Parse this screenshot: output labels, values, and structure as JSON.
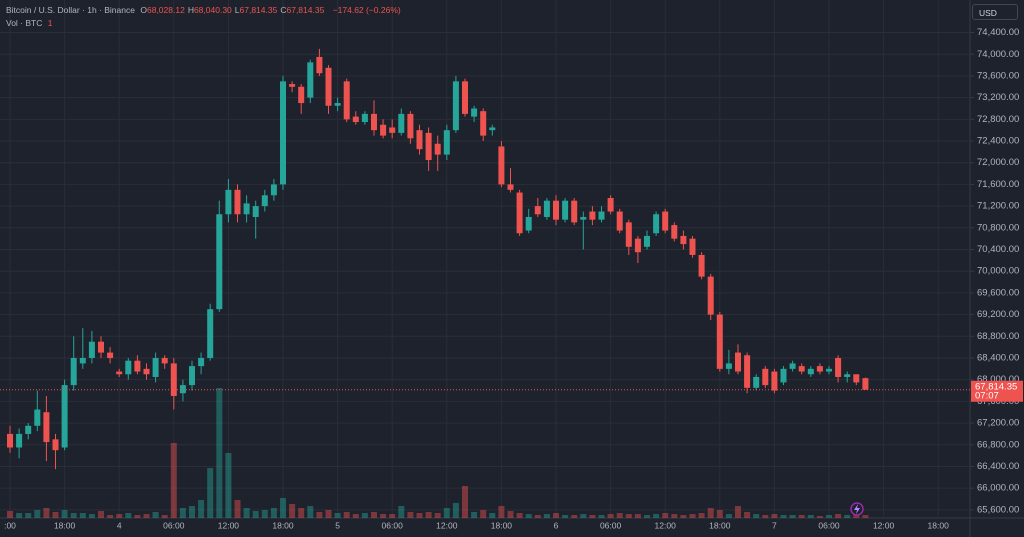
{
  "chart_data": {
    "type": "candlestick",
    "symbol": "Bitcoin / U.S. Dollar · 1h · Binance",
    "ohlc_legend": [
      [
        "O",
        "68,028.12"
      ],
      [
        "H",
        "68,040.30"
      ],
      [
        "L",
        "67,814.35"
      ],
      [
        "C",
        "67,814.35"
      ]
    ],
    "change": "−174.62 (−0.26%)",
    "volume_label": "Vol · BTC",
    "volume_value": "1",
    "currency": "USD",
    "up_color": "#26a69a",
    "down_color": "#ef5350",
    "grid": true,
    "ylim": [
      65450,
      75000
    ],
    "yticks": [
      {
        "value": 65600,
        "label": "65,600.00"
      },
      {
        "value": 66000,
        "label": "66,000.00"
      },
      {
        "value": 66400,
        "label": "66,400.00"
      },
      {
        "value": 66800,
        "label": "66,800.00"
      },
      {
        "value": 67200,
        "label": "67,200.00"
      },
      {
        "value": 67600,
        "label": "67,600.00"
      },
      {
        "value": 68000,
        "label": "68,000.00"
      },
      {
        "value": 68400,
        "label": "68,400.00"
      },
      {
        "value": 68800,
        "label": "68,800.00"
      },
      {
        "value": 69200,
        "label": "69,200.00"
      },
      {
        "value": 69600,
        "label": "69,600.00"
      },
      {
        "value": 70000,
        "label": "70,000.00"
      },
      {
        "value": 70400,
        "label": "70,400.00"
      },
      {
        "value": 70800,
        "label": "70,800.00"
      },
      {
        "value": 71200,
        "label": "71,200.00"
      },
      {
        "value": 71600,
        "label": "71,600.00"
      },
      {
        "value": 72000,
        "label": "72,000.00"
      },
      {
        "value": 72400,
        "label": "72,400.00"
      },
      {
        "value": 72800,
        "label": "72,800.00"
      },
      {
        "value": 73200,
        "label": "73,200.00"
      },
      {
        "value": 73600,
        "label": "73,600.00"
      },
      {
        "value": 74000,
        "label": "74,000.00"
      },
      {
        "value": 74400,
        "label": "74,400.00"
      }
    ],
    "last_price": {
      "value": 67814.35,
      "label": "67,814.35"
    },
    "countdown": "07:07",
    "categories": [
      ":00",
      null,
      null,
      null,
      null,
      null,
      "18:00",
      null,
      null,
      null,
      null,
      null,
      "4",
      null,
      null,
      null,
      null,
      null,
      "06:00",
      null,
      null,
      null,
      null,
      null,
      "12:00",
      null,
      null,
      null,
      null,
      null,
      "18:00",
      null,
      null,
      null,
      null,
      null,
      "5",
      null,
      null,
      null,
      null,
      null,
      "06:00",
      null,
      null,
      null,
      null,
      null,
      "12:00",
      null,
      null,
      null,
      null,
      null,
      "18:00",
      null,
      null,
      null,
      null,
      null,
      "6",
      null,
      null,
      null,
      null,
      null,
      "06:00",
      null,
      null,
      null,
      null,
      null,
      "12:00",
      null,
      null,
      null,
      null,
      null,
      "18:00",
      null,
      null,
      null,
      null,
      null,
      "7",
      null,
      null,
      null,
      null,
      null,
      "06:00",
      null,
      null,
      null,
      null,
      null,
      "12:00",
      null,
      null,
      null,
      null,
      null,
      "18:00"
    ],
    "open": [
      67000,
      66750,
      67000,
      67150,
      67400,
      66900,
      66750,
      67900,
      68300,
      68400,
      68700,
      68500,
      68150,
      68100,
      68350,
      68200,
      68050,
      68400,
      68300,
      67750,
      67900,
      68250,
      68400,
      69300,
      71050,
      71500,
      71050,
      71000,
      71200,
      71400,
      71600,
      73450,
      73400,
      73200,
      73950,
      73750,
      73050,
      73500,
      72850,
      72750,
      72900,
      72700,
      72650,
      72550,
      72900,
      72600,
      72550,
      72350,
      72150,
      72600,
      73500,
      72850,
      72950,
      72600,
      72300,
      71600,
      71450,
      70750,
      71200,
      71000,
      71300,
      70950,
      71300,
      70950,
      71100,
      70950,
      71350,
      71100,
      70900,
      70600,
      70450,
      70700,
      71100,
      70850,
      70650,
      70600,
      70300,
      69900,
      69200,
      68200,
      68500,
      68450,
      67850,
      68200,
      68150,
      67950,
      68200,
      68250,
      68100,
      68250,
      68150,
      68400,
      68050,
      68100,
      68028.12,
      null,
      null,
      null,
      null,
      null,
      null,
      null,
      null
    ],
    "high": [
      67150,
      67100,
      67200,
      67800,
      67700,
      67000,
      68000,
      68800,
      68950,
      68900,
      68800,
      68600,
      68200,
      68400,
      68450,
      68300,
      68500,
      68450,
      68400,
      68000,
      68350,
      68500,
      69400,
      71300,
      71700,
      71600,
      71400,
      71300,
      71500,
      71700,
      73600,
      73500,
      73450,
      73900,
      74100,
      73800,
      73200,
      73550,
      72950,
      72950,
      73150,
      72800,
      72800,
      73000,
      72950,
      72700,
      72650,
      72500,
      72700,
      73600,
      73550,
      73050,
      73000,
      72700,
      72400,
      71900,
      71500,
      71150,
      71350,
      71350,
      71400,
      71350,
      71350,
      71100,
      71200,
      71200,
      71400,
      71150,
      70950,
      70650,
      70750,
      71100,
      71150,
      70900,
      70750,
      70650,
      70350,
      69950,
      69250,
      68550,
      68650,
      68500,
      68100,
      68250,
      68200,
      68250,
      68350,
      68300,
      68250,
      68300,
      68250,
      68450,
      68150,
      68100,
      68040.3,
      null,
      null,
      null,
      null,
      null,
      null,
      null,
      null
    ],
    "low": [
      66650,
      66550,
      66900,
      67050,
      66500,
      66350,
      66700,
      67800,
      68200,
      68300,
      68400,
      68300,
      68050,
      68000,
      68100,
      68000,
      67950,
      68200,
      67450,
      67600,
      67800,
      68100,
      68350,
      69250,
      70900,
      70900,
      70900,
      70600,
      71100,
      71300,
      71500,
      73300,
      72900,
      73100,
      73600,
      72900,
      72950,
      72750,
      72700,
      72700,
      72500,
      72450,
      72450,
      72500,
      72350,
      72150,
      71850,
      71850,
      72050,
      72550,
      72850,
      72750,
      72400,
      72500,
      71550,
      71450,
      70650,
      70700,
      71000,
      70950,
      70850,
      70900,
      70850,
      70400,
      70850,
      70900,
      71050,
      70700,
      70300,
      70150,
      70400,
      70650,
      70700,
      70550,
      70400,
      70250,
      69850,
      69100,
      68150,
      68100,
      68100,
      67750,
      67800,
      67850,
      67750,
      67900,
      68150,
      68100,
      68050,
      68100,
      68100,
      67950,
      67950,
      67900,
      67814.35,
      null,
      null,
      null,
      null,
      null,
      null,
      null,
      null
    ],
    "close": [
      66750,
      67000,
      67150,
      67450,
      66850,
      66700,
      67900,
      68400,
      68400,
      68700,
      68500,
      68400,
      68100,
      68350,
      68150,
      68100,
      68400,
      68300,
      67700,
      67900,
      68250,
      68400,
      69300,
      71050,
      71500,
      71050,
      71250,
      71200,
      71400,
      71600,
      73500,
      73400,
      73100,
      73850,
      73650,
      73050,
      73100,
      72800,
      72750,
      72900,
      72600,
      72500,
      72550,
      72900,
      72450,
      72250,
      72050,
      72150,
      72600,
      73500,
      72900,
      73000,
      72500,
      72650,
      71600,
      71500,
      70700,
      71000,
      71050,
      71300,
      70950,
      71300,
      70900,
      71000,
      70950,
      71100,
      71100,
      70750,
      70450,
      70350,
      70650,
      71050,
      70750,
      70600,
      70500,
      70300,
      69900,
      69200,
      68200,
      68300,
      68150,
      67850,
      68050,
      67900,
      67800,
      68200,
      68300,
      68150,
      68200,
      68150,
      68200,
      68050,
      68100,
      67950,
      67814.35,
      null,
      null,
      null,
      null,
      null,
      null,
      null,
      null
    ],
    "volume": [
      420,
      300,
      300,
      480,
      600,
      360,
      480,
      300,
      300,
      240,
      420,
      180,
      240,
      300,
      180,
      240,
      360,
      180,
      4500,
      600,
      720,
      1080,
      3000,
      7800,
      3900,
      1080,
      600,
      420,
      480,
      600,
      1200,
      840,
      600,
      720,
      360,
      480,
      300,
      360,
      240,
      300,
      360,
      240,
      240,
      720,
      360,
      300,
      360,
      300,
      600,
      900,
      1920,
      360,
      480,
      300,
      720,
      420,
      300,
      240,
      180,
      240,
      300,
      180,
      180,
      240,
      180,
      180,
      240,
      300,
      240,
      240,
      180,
      240,
      300,
      240,
      180,
      240,
      300,
      600,
      480,
      240,
      720,
      360,
      240,
      180,
      240,
      180,
      180,
      180,
      180,
      120,
      180,
      240,
      180,
      180,
      180,
      null,
      null,
      null,
      null,
      null,
      null,
      null,
      null
    ]
  }
}
